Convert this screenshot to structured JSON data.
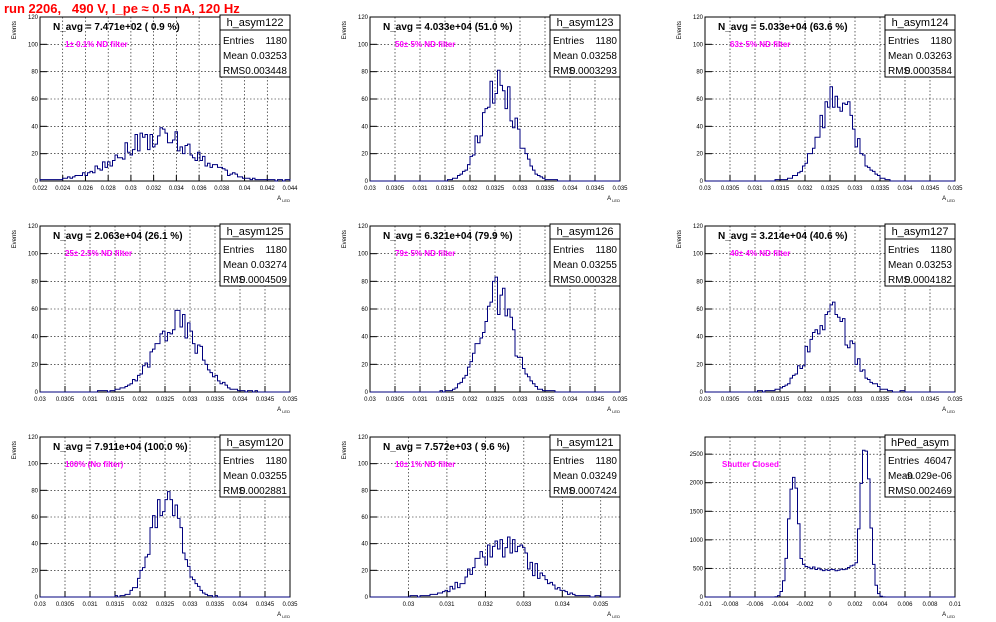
{
  "page": {
    "title": "run 2206,   490 V, I_pe ≈ 0.5 nA, 120 Hz"
  },
  "colors": {
    "title": "#ff0000",
    "histogram": "#00007f",
    "note": "#ff00ff",
    "grid": "#000000"
  },
  "chart_data": [
    {
      "type": "histogram",
      "name": "h_asym122",
      "stats": {
        "Entries": "1180",
        "Mean": "0.03253",
        "RMS": "0.003448"
      },
      "n_avg_label": "N_avg = 7.471e+02 ( 0.9 %)",
      "note": "1± 0.1% ND filter",
      "ylabel": "Events",
      "xlabel": "A_LED",
      "xlim": [
        0.022,
        0.044
      ],
      "ylim": [
        0,
        120
      ],
      "xticks": [
        "0.022",
        "0.024",
        "0.026",
        "0.028",
        "0.03",
        "0.032",
        "0.034",
        "0.036",
        "0.038",
        "0.04",
        "0.042",
        "0.044"
      ],
      "yticks": [
        "0",
        "20",
        "40",
        "60",
        "80",
        "100",
        "120"
      ],
      "dist": {
        "type": "gauss",
        "mean": 0.0324,
        "sigma": 0.0034,
        "peak": 32,
        "bins": 100,
        "noise": 0.28,
        "seed": 122
      }
    },
    {
      "type": "histogram",
      "name": "h_asym123",
      "stats": {
        "Entries": "1180",
        "Mean": "0.03258",
        "RMS": "0.0003293"
      },
      "n_avg_label": "N_avg = 4.033e+04 (51.0 %)",
      "note": "50± 5% ND filter",
      "ylabel": "Events",
      "xlabel": "A_LED",
      "xlim": [
        0.03,
        0.035
      ],
      "ylim": [
        0,
        120
      ],
      "xticks": [
        "0.03",
        "0.0305",
        "0.031",
        "0.0315",
        "0.032",
        "0.0325",
        "0.033",
        "0.0335",
        "0.034",
        "0.0345",
        "0.035"
      ],
      "yticks": [
        "0",
        "20",
        "40",
        "60",
        "80",
        "100",
        "120"
      ],
      "dist": {
        "type": "gauss",
        "mean": 0.03258,
        "sigma": 0.00033,
        "peak": 72,
        "bins": 100,
        "noise": 0.22,
        "seed": 123
      }
    },
    {
      "type": "histogram",
      "name": "h_asym124",
      "stats": {
        "Entries": "1180",
        "Mean": "0.03263",
        "RMS": "0.0003584"
      },
      "n_avg_label": "N_avg = 5.033e+04 (63.6 %)",
      "note": "63± 5% ND filter",
      "ylabel": "Events",
      "xlabel": "A_LED",
      "xlim": [
        0.03,
        0.035
      ],
      "ylim": [
        0,
        120
      ],
      "xticks": [
        "0.03",
        "0.0305",
        "0.031",
        "0.0315",
        "0.032",
        "0.0325",
        "0.033",
        "0.0335",
        "0.034",
        "0.0345",
        "0.035"
      ],
      "yticks": [
        "0",
        "20",
        "40",
        "60",
        "80",
        "100",
        "120"
      ],
      "dist": {
        "type": "gauss",
        "mean": 0.03262,
        "sigma": 0.00035,
        "peak": 62,
        "bins": 100,
        "noise": 0.22,
        "seed": 124
      }
    },
    {
      "type": "histogram",
      "name": "h_asym125",
      "stats": {
        "Entries": "1180",
        "Mean": "0.03274",
        "RMS": "0.0004509"
      },
      "n_avg_label": "N_avg = 2.063e+04 (26.1 %)",
      "note": "25± 2.5% ND filter",
      "ylabel": "Events",
      "xlabel": "A_LED",
      "xlim": [
        0.03,
        0.035
      ],
      "ylim": [
        0,
        120
      ],
      "xticks": [
        "0.03",
        "0.0305",
        "0.031",
        "0.0315",
        "0.032",
        "0.0325",
        "0.033",
        "0.0335",
        "0.034",
        "0.0345",
        "0.035"
      ],
      "yticks": [
        "0",
        "20",
        "40",
        "60",
        "80",
        "100",
        "120"
      ],
      "dist": {
        "type": "gauss",
        "mean": 0.03274,
        "sigma": 0.00045,
        "peak": 50,
        "bins": 100,
        "noise": 0.22,
        "seed": 125
      }
    },
    {
      "type": "histogram",
      "name": "h_asym126",
      "stats": {
        "Entries": "1180",
        "Mean": "0.03255",
        "RMS": "0.000328"
      },
      "n_avg_label": "N_avg = 6.321e+04 (79.9 %)",
      "note": "79± 5% ND filter",
      "ylabel": "Events",
      "xlabel": "A_LED",
      "xlim": [
        0.03,
        0.035
      ],
      "ylim": [
        0,
        120
      ],
      "xticks": [
        "0.03",
        "0.0305",
        "0.031",
        "0.0315",
        "0.032",
        "0.0325",
        "0.033",
        "0.0335",
        "0.034",
        "0.0345",
        "0.035"
      ],
      "yticks": [
        "0",
        "20",
        "40",
        "60",
        "80",
        "100",
        "120"
      ],
      "dist": {
        "type": "gauss",
        "mean": 0.03253,
        "sigma": 0.00033,
        "peak": 68,
        "bins": 100,
        "noise": 0.22,
        "seed": 126
      }
    },
    {
      "type": "histogram",
      "name": "h_asym127",
      "stats": {
        "Entries": "1180",
        "Mean": "0.03253",
        "RMS": "0.0004182"
      },
      "n_avg_label": "N_avg = 3.214e+04 (40.6 %)",
      "note": "40± 4% ND filter",
      "ylabel": "Events",
      "xlabel": "A_LED",
      "xlim": [
        0.03,
        0.035
      ],
      "ylim": [
        0,
        120
      ],
      "xticks": [
        "0.03",
        "0.0305",
        "0.031",
        "0.0315",
        "0.032",
        "0.0325",
        "0.033",
        "0.0335",
        "0.034",
        "0.0345",
        "0.035"
      ],
      "yticks": [
        "0",
        "20",
        "40",
        "60",
        "80",
        "100",
        "120"
      ],
      "dist": {
        "type": "gauss",
        "mean": 0.03252,
        "sigma": 0.00041,
        "peak": 56,
        "bins": 100,
        "noise": 0.25,
        "seed": 127
      }
    },
    {
      "type": "histogram",
      "name": "h_asym120",
      "stats": {
        "Entries": "1180",
        "Mean": "0.03255",
        "RMS": "0.0002881"
      },
      "n_avg_label": "N_avg = 7.911e+04 (100.0 %)",
      "note": "100% (No filter)",
      "ylabel": "Events",
      "xlabel": "A_LED",
      "xlim": [
        0.03,
        0.035
      ],
      "ylim": [
        0,
        120
      ],
      "xticks": [
        "0.03",
        "0.0305",
        "0.031",
        "0.0315",
        "0.032",
        "0.0325",
        "0.033",
        "0.0335",
        "0.034",
        "0.0345",
        "0.035"
      ],
      "yticks": [
        "0",
        "20",
        "40",
        "60",
        "80",
        "100",
        "120"
      ],
      "dist": {
        "type": "gauss",
        "mean": 0.03253,
        "sigma": 0.00029,
        "peak": 78,
        "bins": 100,
        "noise": 0.2,
        "seed": 120
      }
    },
    {
      "type": "histogram",
      "name": "h_asym121",
      "stats": {
        "Entries": "1180",
        "Mean": "0.03249",
        "RMS": "0.0007424"
      },
      "n_avg_label": "N_avg = 7.572e+03 ( 9.6 %)",
      "note": "10± 1% ND filter",
      "ylabel": "Events",
      "xlabel": "A_LED",
      "xlim": [
        0.029,
        0.0355
      ],
      "ylim": [
        0,
        120
      ],
      "xticks": [
        "0.03",
        "0.031",
        "0.032",
        "0.033",
        "0.034",
        "0.035"
      ],
      "xtick_values": [
        0.03,
        0.031,
        0.032,
        0.033,
        0.034,
        0.035
      ],
      "yticks": [
        "0",
        "20",
        "40",
        "60",
        "80",
        "100",
        "120"
      ],
      "dist": {
        "type": "gauss",
        "mean": 0.03249,
        "sigma": 0.00074,
        "peak": 37,
        "bins": 100,
        "noise": 0.28,
        "seed": 121
      }
    },
    {
      "type": "histogram",
      "name": "hPed_asym",
      "stats": {
        "Entries": "46047",
        "Mean": "-9.029e-06",
        "RMS": "0.002469"
      },
      "n_avg_label": "",
      "note": "Shutter Closed",
      "ylabel": "",
      "xlabel": "A_LED",
      "xlim": [
        -0.01,
        0.01
      ],
      "ylim": [
        0,
        2800
      ],
      "xticks": [
        "-0.01",
        "-0.008",
        "-0.006",
        "-0.004",
        "-0.002",
        "0",
        "0.002",
        "0.004",
        "0.006",
        "0.008",
        "0.01"
      ],
      "yticks": [
        "0",
        "500",
        "1000",
        "1500",
        "2000",
        "2500"
      ],
      "dist": {
        "type": "double",
        "mean1": -0.0029,
        "mean2": 0.0028,
        "sigma": 0.0004,
        "peak1": 2150,
        "peak2": 2650,
        "floor": 520,
        "bins": 100,
        "noise": 0.05,
        "seed": 7
      }
    }
  ]
}
